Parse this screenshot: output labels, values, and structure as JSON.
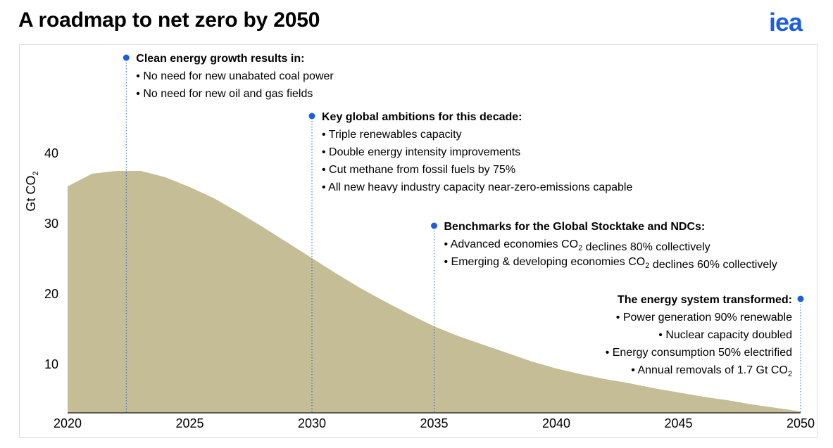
{
  "title": "A roadmap to net zero by 2050",
  "logo_text": "iea",
  "colors": {
    "area": "#c4bd95",
    "accent": "#1b5fe0",
    "axis": "#333333"
  },
  "chart_data": {
    "type": "area",
    "title": "A roadmap to net zero by 2050",
    "ylabel": "Gt CO2",
    "xlabel": "",
    "xlim": [
      2020,
      2050
    ],
    "ylim": [
      3.2,
      43
    ],
    "x_ticks": [
      2020,
      2025,
      2030,
      2035,
      2040,
      2045,
      2050
    ],
    "y_ticks": [
      10,
      20,
      30,
      40
    ],
    "grid": false,
    "series": [
      {
        "x": [
          2020,
          2021,
          2022,
          2023,
          2024,
          2025,
          2026,
          2027,
          2028,
          2029,
          2030,
          2031,
          2032,
          2033,
          2034,
          2035,
          2036,
          2037,
          2038,
          2039,
          2040,
          2041,
          2042,
          2043,
          2044,
          2045,
          2046,
          2047,
          2048,
          2049,
          2050
        ],
        "values": [
          35.3,
          37.1,
          37.5,
          37.5,
          36.6,
          35.2,
          33.6,
          31.6,
          29.5,
          27.3,
          25.1,
          22.9,
          20.8,
          18.9,
          17.1,
          15.4,
          14.0,
          12.8,
          11.6,
          10.4,
          9.4,
          8.6,
          7.9,
          7.3,
          6.6,
          6.0,
          5.4,
          4.9,
          4.3,
          3.8,
          3.3
        ]
      }
    ],
    "annotations": [
      {
        "x": 2022.4,
        "heading": "Clean energy growth results in:",
        "align": "left",
        "items": [
          "No need for new unabated coal power",
          "No need for new oil and gas fields"
        ]
      },
      {
        "x": 2030,
        "heading": "Key global ambitions for this decade:",
        "align": "left",
        "items": [
          "Triple renewables capacity",
          "Double energy intensity improvements",
          "Cut methane from fossil fuels by 75%",
          "All new heavy industry capacity near-zero-emissions capable"
        ]
      },
      {
        "x": 2035,
        "heading": "Benchmarks for the Global Stocktake and NDCs:",
        "align": "left",
        "items": [
          "Advanced economies CO2 declines 80% collectively",
          "Emerging & developing economies CO2 declines 60% collectively"
        ]
      },
      {
        "x": 2050,
        "heading": "The energy system transformed:",
        "align": "right",
        "items": [
          "Power generation 90% renewable",
          "Nuclear capacity doubled",
          "Energy consumption 50% electrified",
          "Annual removals of 1.7 Gt CO2"
        ]
      }
    ]
  }
}
